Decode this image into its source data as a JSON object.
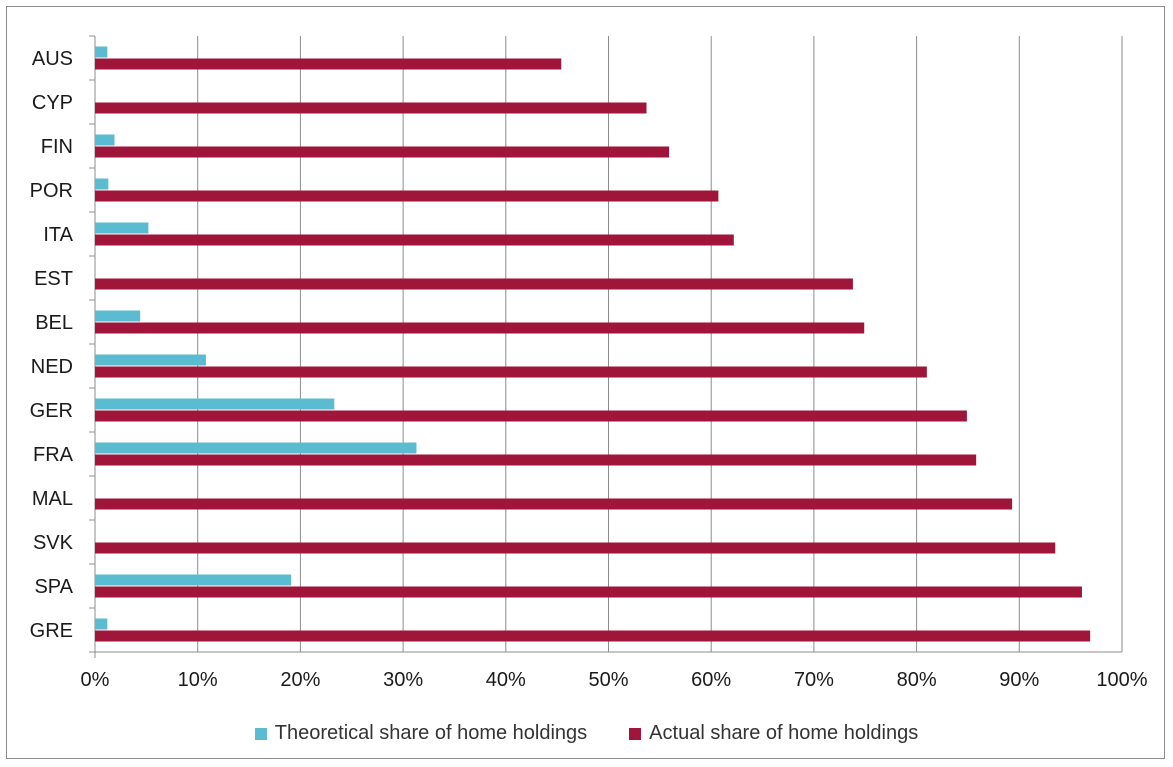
{
  "chart_data": {
    "type": "bar",
    "orientation": "horizontal",
    "title": "",
    "xlabel": "",
    "ylabel": "",
    "xlim": [
      0,
      100
    ],
    "x_ticks": [
      "0%",
      "10%",
      "20%",
      "30%",
      "40%",
      "50%",
      "60%",
      "70%",
      "80%",
      "90%",
      "100%"
    ],
    "grid": true,
    "legend_position": "bottom",
    "categories": [
      "AUS",
      "CYP",
      "FIN",
      "POR",
      "ITA",
      "EST",
      "BEL",
      "NED",
      "GER",
      "FRA",
      "MAL",
      "SVK",
      "SPA",
      "GRE"
    ],
    "series": [
      {
        "name": "Theoretical share of home holdings",
        "color": "#5BBCD1",
        "values": [
          1.2,
          0,
          1.9,
          1.3,
          5.2,
          0,
          4.4,
          10.8,
          23.3,
          31.3,
          0,
          0,
          19.1,
          1.2
        ]
      },
      {
        "name": "Actual share of home holdings",
        "color": "#A0163A",
        "values": [
          45.4,
          53.7,
          55.9,
          60.7,
          62.2,
          73.8,
          74.9,
          81.0,
          84.9,
          85.8,
          89.3,
          93.5,
          96.1,
          96.9
        ]
      }
    ]
  }
}
